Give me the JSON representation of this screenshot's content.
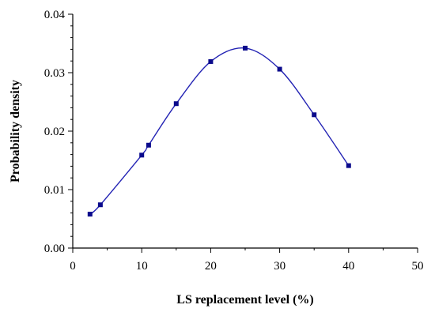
{
  "chart_data": {
    "type": "line",
    "title": "",
    "xlabel": "LS replacement level (%)",
    "ylabel": "Probability density",
    "xlim": [
      0,
      50
    ],
    "ylim": [
      0,
      0.04
    ],
    "x_ticks": [
      "0",
      "10",
      "20",
      "30",
      "40",
      "50"
    ],
    "y_ticks": [
      "0.00",
      "0.01",
      "0.02",
      "0.03",
      "0.04"
    ],
    "grid": false,
    "legend": "none",
    "series": [
      {
        "color": "#0a0a8c",
        "marker": "square",
        "x": [
          2.5,
          4,
          10,
          11,
          15,
          20,
          25,
          30,
          35,
          40
        ],
        "y": [
          0.0058,
          0.0074,
          0.0159,
          0.0176,
          0.0247,
          0.0319,
          0.0342,
          0.0306,
          0.0228,
          0.0141
        ]
      }
    ]
  }
}
